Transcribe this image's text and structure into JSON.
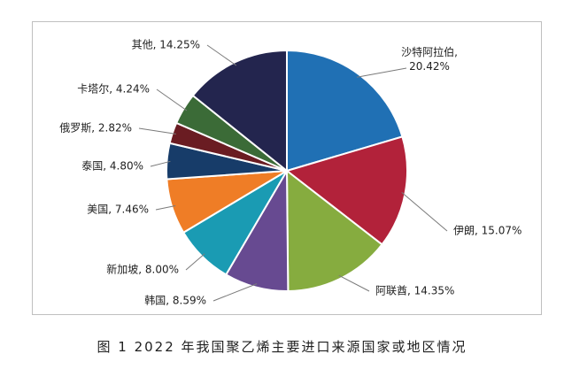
{
  "caption": "图 1  2022 年我国聚乙烯主要进口来源国家或地区情况",
  "chart_data": {
    "type": "pie",
    "title": "",
    "start_angle_deg": 0,
    "direction": "clockwise",
    "slices": [
      {
        "name": "沙特阿拉伯",
        "value": 20.42,
        "label": "沙特阿拉伯,",
        "value_label": "20.42%",
        "color": "#2070b4"
      },
      {
        "name": "伊朗",
        "value": 15.07,
        "label": "伊朗, 15.07%",
        "color": "#b2223a"
      },
      {
        "name": "阿联酋",
        "value": 14.35,
        "label": "阿联酋, 14.35%",
        "color": "#86ac3f"
      },
      {
        "name": "韩国",
        "value": 8.59,
        "label": "韩国, 8.59%",
        "color": "#674a91"
      },
      {
        "name": "新加坡",
        "value": 8.0,
        "label": "新加坡, 8.00%",
        "color": "#1a9bb3"
      },
      {
        "name": "美国",
        "value": 7.46,
        "label": "美国, 7.46%",
        "color": "#ef7d26"
      },
      {
        "name": "泰国",
        "value": 4.8,
        "label": "泰国, 4.80%",
        "color": "#173c69"
      },
      {
        "name": "俄罗斯",
        "value": 2.82,
        "label": "俄罗斯, 2.82%",
        "color": "#6a1c22"
      },
      {
        "name": "卡塔尔",
        "value": 4.24,
        "label": "卡塔尔, 4.24%",
        "color": "#3b6b37"
      },
      {
        "name": "其他",
        "value": 14.25,
        "label": "其他, 14.25%",
        "color": "#23254e"
      }
    ]
  }
}
